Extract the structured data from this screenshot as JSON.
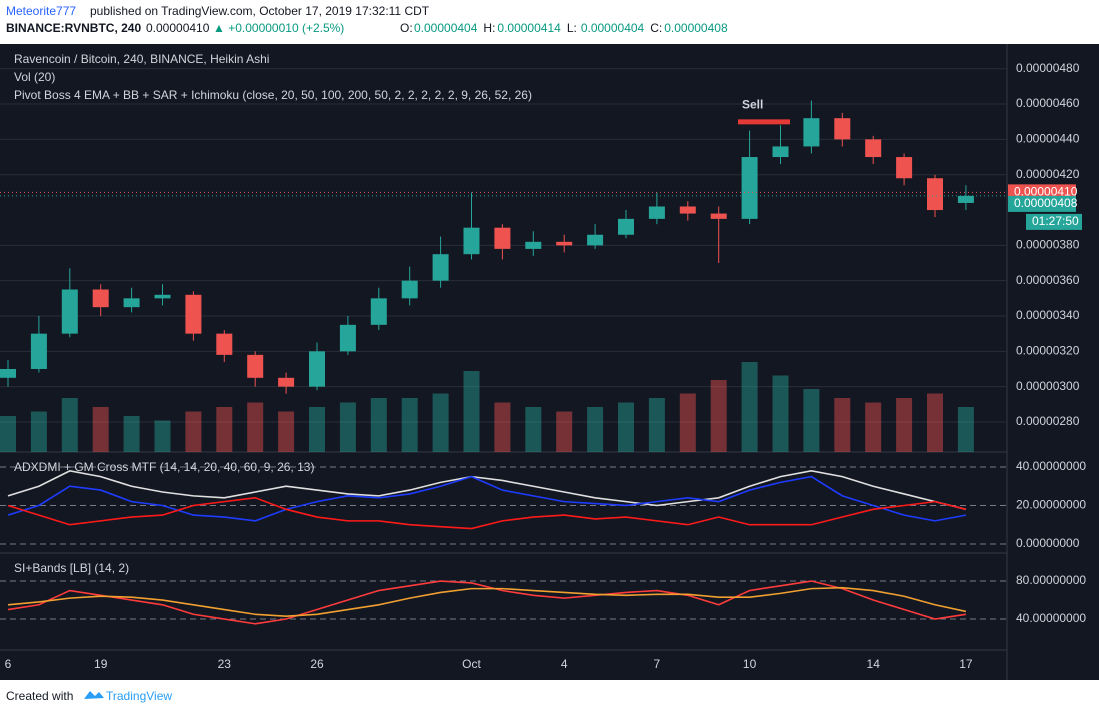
{
  "header": {
    "publisher": "Meteorite777",
    "published": "published on TradingView.com, October 17, 2019 17:32:11 CDT",
    "symbol": "BINANCE:RVNBTC, 240",
    "last": "0.00000410",
    "change": "▲ +0.00000010 (+2.5%)",
    "ohlc": [
      {
        "label": "O:",
        "value": "0.00000404"
      },
      {
        "label": "H:",
        "value": "0.00000414"
      },
      {
        "label": "L:",
        "value": "0.00000404"
      },
      {
        "label": "C:",
        "value": "0.00000408"
      }
    ]
  },
  "chart_data": [
    {
      "type": "candlestick",
      "title": "Ravencoin / Bitcoin, 240, BINANCE, Heikin Ashi",
      "legends": [
        "Vol (20)",
        "Pivot Boss 4 EMA + BB + SAR + Ichimoku (close, 20, 50, 100, 200, 50, 2, 2, 2, 2, 2, 9, 26, 52, 26)"
      ],
      "categories": [
        "6",
        null,
        null,
        "19",
        null,
        null,
        null,
        "23",
        null,
        null,
        "26",
        null,
        null,
        null,
        null,
        "Oct",
        null,
        null,
        "4",
        null,
        null,
        "7",
        null,
        null,
        "10",
        null,
        null,
        null,
        "14",
        null,
        null,
        "17"
      ],
      "open": [
        3.05e-06,
        3.1e-06,
        3.3e-06,
        3.55e-06,
        3.45e-06,
        3.5e-06,
        3.52e-06,
        3.3e-06,
        3.18e-06,
        3.05e-06,
        3e-06,
        3.2e-06,
        3.35e-06,
        3.5e-06,
        3.6e-06,
        3.75e-06,
        3.9e-06,
        3.78e-06,
        3.82e-06,
        3.8e-06,
        3.86e-06,
        3.95e-06,
        4.02e-06,
        3.98e-06,
        3.95e-06,
        4.3e-06,
        4.36e-06,
        4.52e-06,
        4.4e-06,
        4.3e-06,
        4.18e-06,
        4.04e-06
      ],
      "high": [
        3.15e-06,
        3.4e-06,
        3.67e-06,
        3.58e-06,
        3.56e-06,
        3.58e-06,
        3.54e-06,
        3.32e-06,
        3.2e-06,
        3.08e-06,
        3.25e-06,
        3.4e-06,
        3.56e-06,
        3.68e-06,
        3.85e-06,
        4.1e-06,
        3.92e-06,
        3.88e-06,
        3.86e-06,
        3.92e-06,
        4e-06,
        4.1e-06,
        4.05e-06,
        4.02e-06,
        4.45e-06,
        4.48e-06,
        4.62e-06,
        4.55e-06,
        4.42e-06,
        4.32e-06,
        4.2e-06,
        4.14e-06
      ],
      "low": [
        3e-06,
        3.08e-06,
        3.28e-06,
        3.4e-06,
        3.42e-06,
        3.46e-06,
        3.26e-06,
        3.14e-06,
        3e-06,
        2.96e-06,
        2.98e-06,
        3.18e-06,
        3.32e-06,
        3.46e-06,
        3.56e-06,
        3.72e-06,
        3.72e-06,
        3.74e-06,
        3.76e-06,
        3.78e-06,
        3.84e-06,
        3.92e-06,
        3.94e-06,
        3.7e-06,
        3.92e-06,
        4.26e-06,
        4.32e-06,
        4.36e-06,
        4.26e-06,
        4.14e-06,
        3.96e-06,
        4e-06
      ],
      "close": [
        3.1e-06,
        3.3e-06,
        3.55e-06,
        3.45e-06,
        3.5e-06,
        3.52e-06,
        3.3e-06,
        3.18e-06,
        3.05e-06,
        3e-06,
        3.2e-06,
        3.35e-06,
        3.5e-06,
        3.6e-06,
        3.75e-06,
        3.9e-06,
        3.78e-06,
        3.82e-06,
        3.8e-06,
        3.86e-06,
        3.95e-06,
        4.02e-06,
        3.98e-06,
        3.95e-06,
        4.3e-06,
        4.36e-06,
        4.52e-06,
        4.4e-06,
        4.3e-06,
        4.18e-06,
        4e-06,
        4.08e-06
      ],
      "volume": [
        40,
        45,
        60,
        50,
        40,
        35,
        45,
        50,
        55,
        45,
        50,
        55,
        60,
        60,
        65,
        90,
        55,
        50,
        45,
        50,
        55,
        60,
        65,
        80,
        100,
        85,
        70,
        60,
        55,
        60,
        65,
        50
      ],
      "up_color": "#26a69a",
      "down_color": "#ef5350",
      "ylim": [
        2.63e-06,
        4.94e-06
      ],
      "yticks": [
        {
          "value": 2.8e-06,
          "label": "0.00000280"
        },
        {
          "value": 3e-06,
          "label": "0.00000300"
        },
        {
          "value": 3.2e-06,
          "label": "0.00000320"
        },
        {
          "value": 3.4e-06,
          "label": "0.00000340"
        },
        {
          "value": 3.6e-06,
          "label": "0.00000360"
        },
        {
          "value": 3.8e-06,
          "label": "0.00000380"
        },
        {
          "value": 4.2e-06,
          "label": "0.00000420"
        },
        {
          "value": 4.4e-06,
          "label": "0.00000440"
        },
        {
          "value": 4.6e-06,
          "label": "0.00000460"
        },
        {
          "value": 4.8e-06,
          "label": "0.00000480"
        }
      ],
      "grid": true,
      "annotations": [
        {
          "text": "Sell",
          "value": 4.57e-06,
          "color": "#e53935"
        }
      ],
      "price_labels": [
        {
          "value": 4.1e-06,
          "label": "0.00000410",
          "color": "#ef5350"
        },
        {
          "value": 4.08e-06,
          "label": "0.00000408",
          "color": "#26a69a"
        }
      ],
      "countdown": "01:27:50"
    },
    {
      "type": "line",
      "title": "ADXDMI + GM Cross MTF (14, 14, 20, 40, 60, 9, 26, 13)",
      "series": [
        {
          "color": "#e0e0e0",
          "values": [
            25,
            30,
            38,
            35,
            30,
            27,
            25,
            24,
            27,
            30,
            28,
            26,
            25,
            28,
            32,
            35,
            33,
            30,
            27,
            24,
            22,
            20,
            22,
            24,
            30,
            35,
            38,
            35,
            30,
            26,
            22,
            18
          ]
        },
        {
          "color": "#1e3cff",
          "values": [
            15,
            20,
            30,
            28,
            22,
            20,
            15,
            14,
            12,
            18,
            22,
            25,
            24,
            26,
            30,
            35,
            28,
            25,
            22,
            21,
            20,
            22,
            24,
            22,
            28,
            32,
            35,
            25,
            20,
            15,
            12,
            15
          ]
        },
        {
          "color": "#ff1a1a",
          "values": [
            20,
            15,
            10,
            12,
            14,
            15,
            20,
            22,
            24,
            18,
            14,
            12,
            12,
            10,
            9,
            8,
            12,
            14,
            15,
            13,
            14,
            12,
            10,
            14,
            10,
            10,
            10,
            14,
            18,
            20,
            22,
            18
          ]
        }
      ],
      "ylim": [
        -4.7,
        47.8
      ],
      "yticks": [
        {
          "value": 0,
          "label": "0.00000000"
        },
        {
          "value": 20,
          "label": "20.00000000"
        },
        {
          "value": 40,
          "label": "40.00000000"
        }
      ]
    },
    {
      "type": "line",
      "title": "SI+Bands [LB] (14, 2)",
      "series": [
        {
          "color": "#ff3b3b",
          "values": [
            50,
            55,
            70,
            65,
            60,
            55,
            45,
            40,
            35,
            40,
            50,
            60,
            70,
            75,
            80,
            78,
            70,
            65,
            62,
            65,
            68,
            70,
            65,
            55,
            70,
            75,
            80,
            72,
            60,
            50,
            40,
            45
          ]
        },
        {
          "color": "#f0a030",
          "values": [
            55,
            58,
            62,
            64,
            63,
            60,
            55,
            50,
            45,
            43,
            45,
            50,
            55,
            62,
            68,
            72,
            72,
            70,
            68,
            66,
            65,
            66,
            66,
            63,
            63,
            67,
            72,
            73,
            70,
            64,
            55,
            48
          ]
        }
      ],
      "ylim": [
        7.4,
        109.5
      ],
      "yticks": [
        {
          "value": 40,
          "label": "40.00000000"
        },
        {
          "value": 80,
          "label": "80.00000000"
        }
      ]
    }
  ],
  "footer": {
    "created": "Created with",
    "brand": "TradingView"
  }
}
